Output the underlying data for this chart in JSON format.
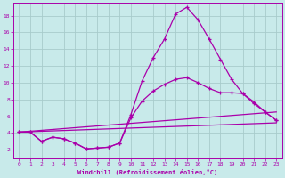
{
  "title": "",
  "xlabel": "Windchill (Refroidissement éolien,°C)",
  "bg_color": "#c8eaea",
  "grid_color": "#a8cccc",
  "line_color": "#aa00aa",
  "xlim": [
    -0.5,
    23.5
  ],
  "ylim": [
    1.0,
    19.5
  ],
  "xticks": [
    0,
    1,
    2,
    3,
    4,
    5,
    6,
    7,
    8,
    9,
    10,
    11,
    12,
    13,
    14,
    15,
    16,
    17,
    18,
    19,
    20,
    21,
    22,
    23
  ],
  "yticks": [
    2,
    4,
    6,
    8,
    10,
    12,
    14,
    16,
    18
  ],
  "series": [
    {
      "x": [
        0,
        1,
        2,
        3,
        4,
        5,
        6,
        7,
        8,
        9,
        10,
        11,
        12,
        13,
        14,
        15,
        16,
        17,
        18,
        19,
        20,
        21,
        22,
        23
      ],
      "y": [
        4.1,
        4.1,
        3.0,
        3.5,
        3.3,
        2.8,
        2.1,
        2.2,
        2.3,
        2.8,
        6.2,
        10.2,
        13.0,
        15.2,
        18.2,
        19.0,
        17.5,
        15.2,
        12.8,
        10.4,
        8.7,
        7.7,
        6.5,
        5.5
      ],
      "has_marker": true
    },
    {
      "x": [
        0,
        1,
        2,
        3,
        4,
        5,
        6,
        7,
        8,
        9,
        10,
        11,
        12,
        13,
        14,
        15,
        16,
        17,
        18,
        19,
        20,
        21,
        22,
        23
      ],
      "y": [
        4.1,
        4.1,
        3.0,
        3.5,
        3.3,
        2.8,
        2.1,
        2.2,
        2.3,
        2.8,
        5.8,
        7.8,
        9.0,
        9.8,
        10.4,
        10.6,
        10.0,
        9.3,
        8.8,
        8.8,
        8.7,
        7.5,
        6.5,
        5.5
      ],
      "has_marker": true
    },
    {
      "x": [
        0,
        23
      ],
      "y": [
        4.1,
        6.5
      ],
      "has_marker": false
    },
    {
      "x": [
        0,
        23
      ],
      "y": [
        4.1,
        5.2
      ],
      "has_marker": false
    }
  ]
}
